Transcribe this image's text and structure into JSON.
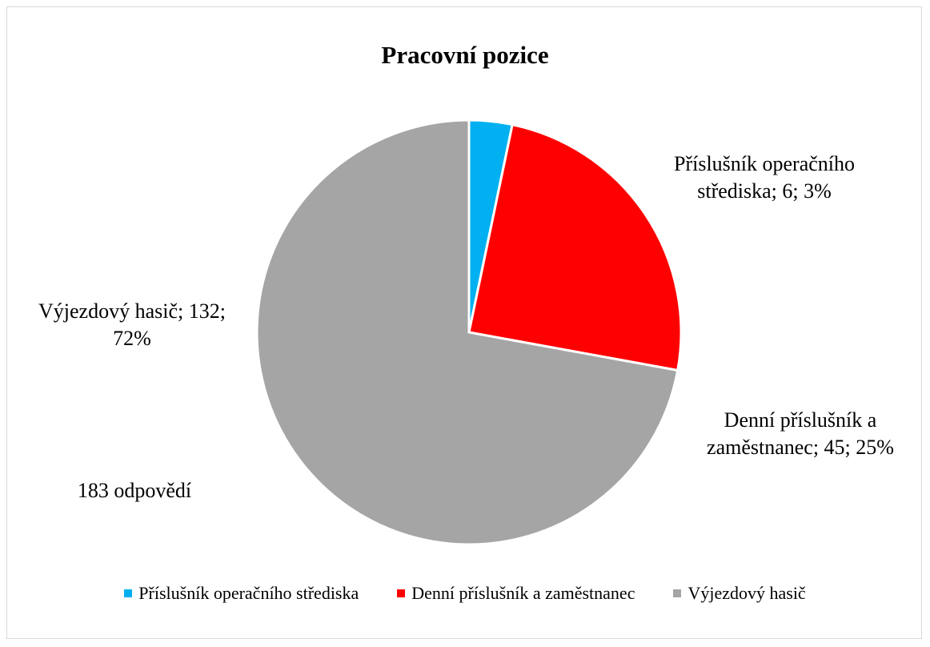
{
  "chart_data": {
    "type": "pie",
    "title": "Pracovní pozice",
    "categories": [
      "Příslušník operačního střediska",
      "Denní příslušník a zaměstnanec",
      "Výjezdový hasič"
    ],
    "values": [
      6,
      45,
      132
    ],
    "value_labels": [
      "Příslušník operačního střediska; 6; 3%",
      "Denní příslušník a zaměstnanec; 45; 25%",
      "Výjezdový hasič; 132; 72%"
    ],
    "colors": [
      "#00b0f0",
      "#ff0000",
      "#a5a5a5"
    ],
    "annotation": "183 odpovědí",
    "legend": "bottom"
  }
}
